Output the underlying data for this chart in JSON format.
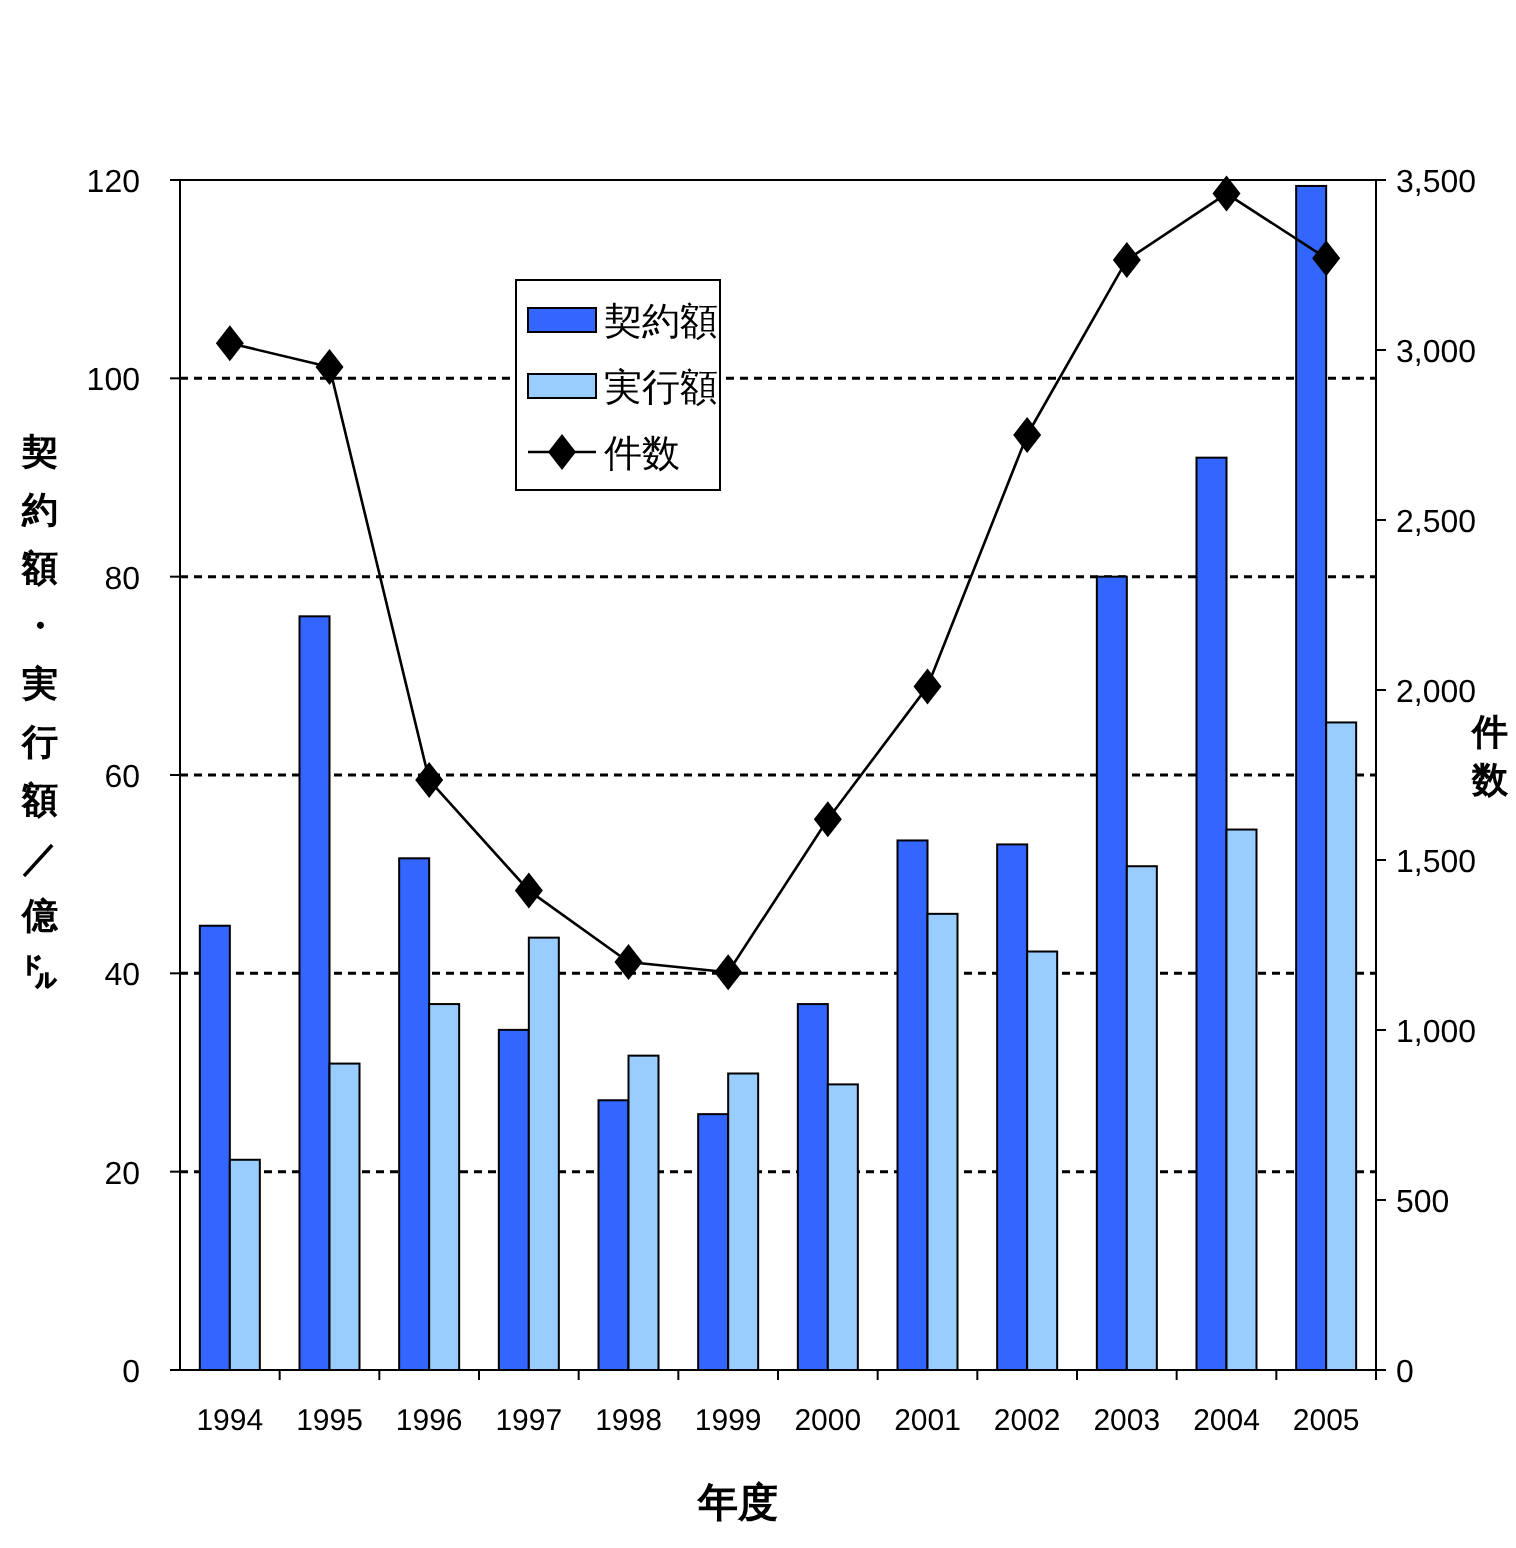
{
  "chart_data": {
    "type": "bar",
    "xlabel": "年度",
    "ylabel": "契約額・実行額／億㌦",
    "y2label": "件数",
    "categories": [
      "1994",
      "1995",
      "1996",
      "1997",
      "1998",
      "1999",
      "2000",
      "2001",
      "2002",
      "2003",
      "2004",
      "2005"
    ],
    "series": [
      {
        "name": "契約額",
        "color": "#3366ff",
        "values": [
          44.8,
          76,
          51.6,
          34.3,
          27.2,
          25.8,
          36.9,
          53.4,
          53,
          80,
          92,
          119.4
        ]
      },
      {
        "name": "実行額",
        "color": "#99ccff",
        "values": [
          21.2,
          30.9,
          36.9,
          43.6,
          31.7,
          29.9,
          28.8,
          46,
          42.2,
          50.8,
          54.5,
          65.3
        ]
      },
      {
        "name": "件数",
        "type": "line",
        "axis": "y2",
        "color": "#000000",
        "marker": "diamond",
        "values": [
          3020,
          2950,
          1735,
          1410,
          1200,
          1170,
          1620,
          2010,
          2750,
          3265,
          3460,
          3270
        ]
      }
    ],
    "ylim": [
      0,
      120
    ],
    "yticks": [
      0,
      20,
      40,
      60,
      80,
      100,
      120
    ],
    "y2lim": [
      0,
      3500
    ],
    "y2ticks": [
      0,
      {
        "value": 500,
        "label": "500"
      },
      {
        "value": 1000,
        "label": "1,000"
      },
      {
        "value": 1500,
        "label": "1,500"
      },
      {
        "value": 2000,
        "label": "2,000"
      },
      {
        "value": 2500,
        "label": "2,500"
      },
      {
        "value": 3000,
        "label": "3,000"
      },
      {
        "value": 3500,
        "label": "3,500"
      }
    ],
    "grid": "y",
    "legend": "top left"
  }
}
